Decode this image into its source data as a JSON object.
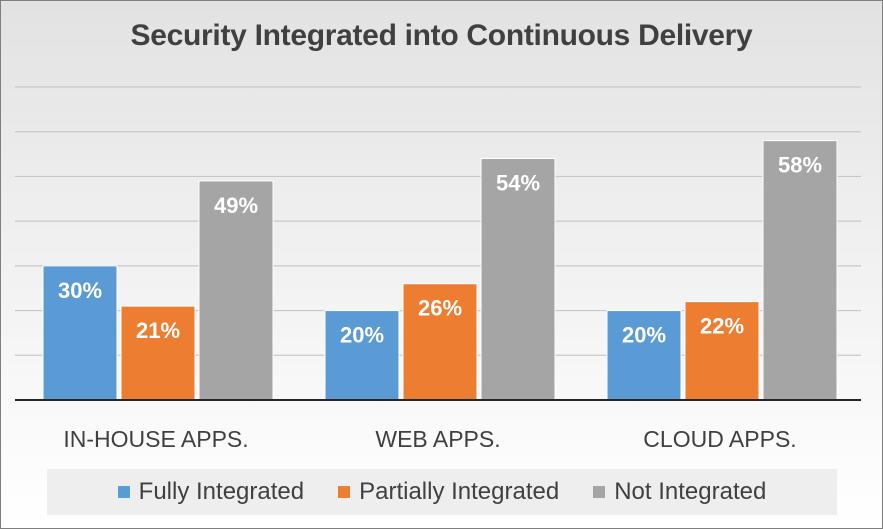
{
  "chart_data": {
    "type": "bar",
    "title": "Security Integrated into Continuous Delivery",
    "categories": [
      "IN-HOUSE APPS.",
      "WEB APPS.",
      "CLOUD APPS."
    ],
    "series": [
      {
        "name": "Fully Integrated",
        "values": [
          30,
          20,
          20
        ],
        "labels": [
          "30%",
          "20%",
          "20%"
        ],
        "color": "#5b9bd5"
      },
      {
        "name": "Partially Integrated",
        "values": [
          21,
          26,
          22
        ],
        "labels": [
          "21%",
          "26%",
          "22%"
        ],
        "color": "#ed7d31"
      },
      {
        "name": "Not Integrated",
        "values": [
          49,
          54,
          58
        ],
        "labels": [
          "49%",
          "54%",
          "58%"
        ],
        "color": "#a5a5a5"
      }
    ],
    "ylim": [
      0,
      70
    ],
    "grid": true,
    "legend_position": "bottom",
    "data_labels_color": "#ffffff"
  }
}
